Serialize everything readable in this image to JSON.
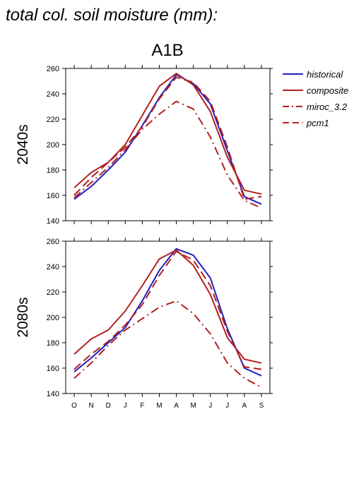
{
  "title": "total col. soil moisture (mm):",
  "scenario": "A1B",
  "chart_data": {
    "type": "line",
    "categories": [
      "O",
      "N",
      "D",
      "J",
      "F",
      "M",
      "A",
      "M",
      "J",
      "J",
      "A",
      "S"
    ],
    "ylim": [
      140,
      260
    ],
    "yticks": [
      140,
      160,
      180,
      200,
      220,
      240,
      260
    ],
    "legend_position": "right",
    "legend": [
      {
        "name": "historical",
        "color": "#1f1fbf",
        "dash": "solid"
      },
      {
        "name": "composite",
        "color": "#b21f1f",
        "dash": "solid"
      },
      {
        "name": "miroc_3.2",
        "color": "#b21f1f",
        "dash": "dashdot"
      },
      {
        "name": "pcm1",
        "color": "#b21f1f",
        "dash": "dash"
      }
    ],
    "panels": [
      {
        "label": "2040s",
        "series": [
          {
            "name": "historical",
            "values": [
              157,
              167,
              180,
              194,
              215,
              237,
              255,
              248,
              232,
              195,
              159,
              153
            ]
          },
          {
            "name": "composite",
            "values": [
              166,
              178,
              186,
              200,
              223,
              246,
              256,
              247,
              226,
              190,
              164,
              161
            ]
          },
          {
            "name": "miroc_3.2",
            "values": [
              158,
              170,
              182,
              196,
              212,
              224,
              234,
              228,
              206,
              176,
              156,
              150
            ]
          },
          {
            "name": "pcm1",
            "values": [
              160,
              174,
              186,
              198,
              214,
              236,
              253,
              249,
              234,
              198,
              157,
              159
            ]
          }
        ]
      },
      {
        "label": "2080s",
        "series": [
          {
            "name": "historical",
            "values": [
              157,
              168,
              180,
              192,
              213,
              237,
              254,
              249,
              231,
              191,
              160,
              154
            ]
          },
          {
            "name": "composite",
            "values": [
              171,
              183,
              190,
              205,
              225,
              246,
              253,
              241,
              218,
              184,
              167,
              164
            ]
          },
          {
            "name": "miroc_3.2",
            "values": [
              152,
              164,
              178,
              190,
              199,
              208,
              213,
              203,
              187,
              164,
              152,
              145
            ]
          },
          {
            "name": "pcm1",
            "values": [
              159,
              171,
              181,
              194,
              210,
              233,
              252,
              245,
              225,
              189,
              161,
              159
            ]
          }
        ]
      }
    ]
  }
}
